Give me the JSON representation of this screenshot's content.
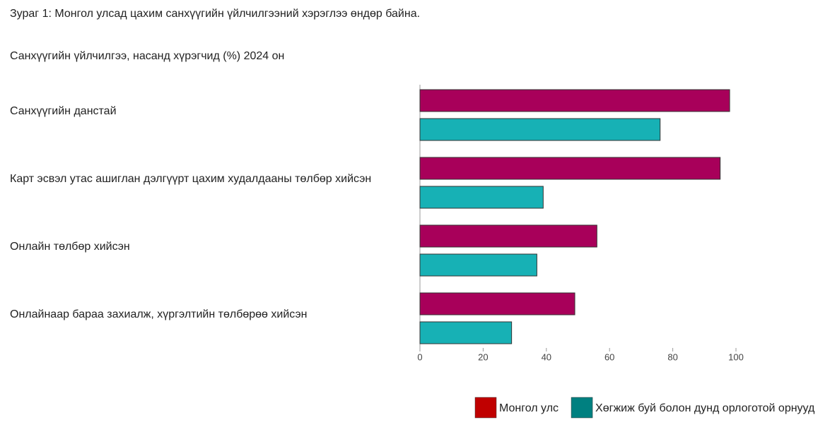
{
  "chart_data": {
    "type": "bar",
    "orientation": "horizontal",
    "title": "Зураг 1: Монгол улсад цахим санхүүгийн үйлчилгээний хэрэглээ өндөр байна.",
    "subtitle": "Санхүүгийн үйлчилгээ, насанд хүрэгчид (%) 2024 он",
    "categories": [
      "Санхүүгийн данстай",
      "Карт эсвэл утас ашиглан дэлгүүрт цахим худалдааны төлбөр хийсэн",
      "Онлайн төлбөр хийсэн",
      "Онлайнаар бараа захиалж, хүргэлтийн төлбөрөө хийсэн"
    ],
    "series": [
      {
        "name": "Монгол улс",
        "color": "#a8005a",
        "legend_color": "#c00000",
        "values": [
          98,
          95,
          56,
          49
        ]
      },
      {
        "name": "Хөгжиж буй болон дунд орлоготой орнууд",
        "color": "#17b1b5",
        "legend_color": "#008080",
        "values": [
          76,
          39,
          37,
          29
        ]
      }
    ],
    "xlim": [
      0,
      100
    ],
    "xticks": [
      0,
      20,
      40,
      60,
      80,
      100
    ],
    "grid": false
  }
}
